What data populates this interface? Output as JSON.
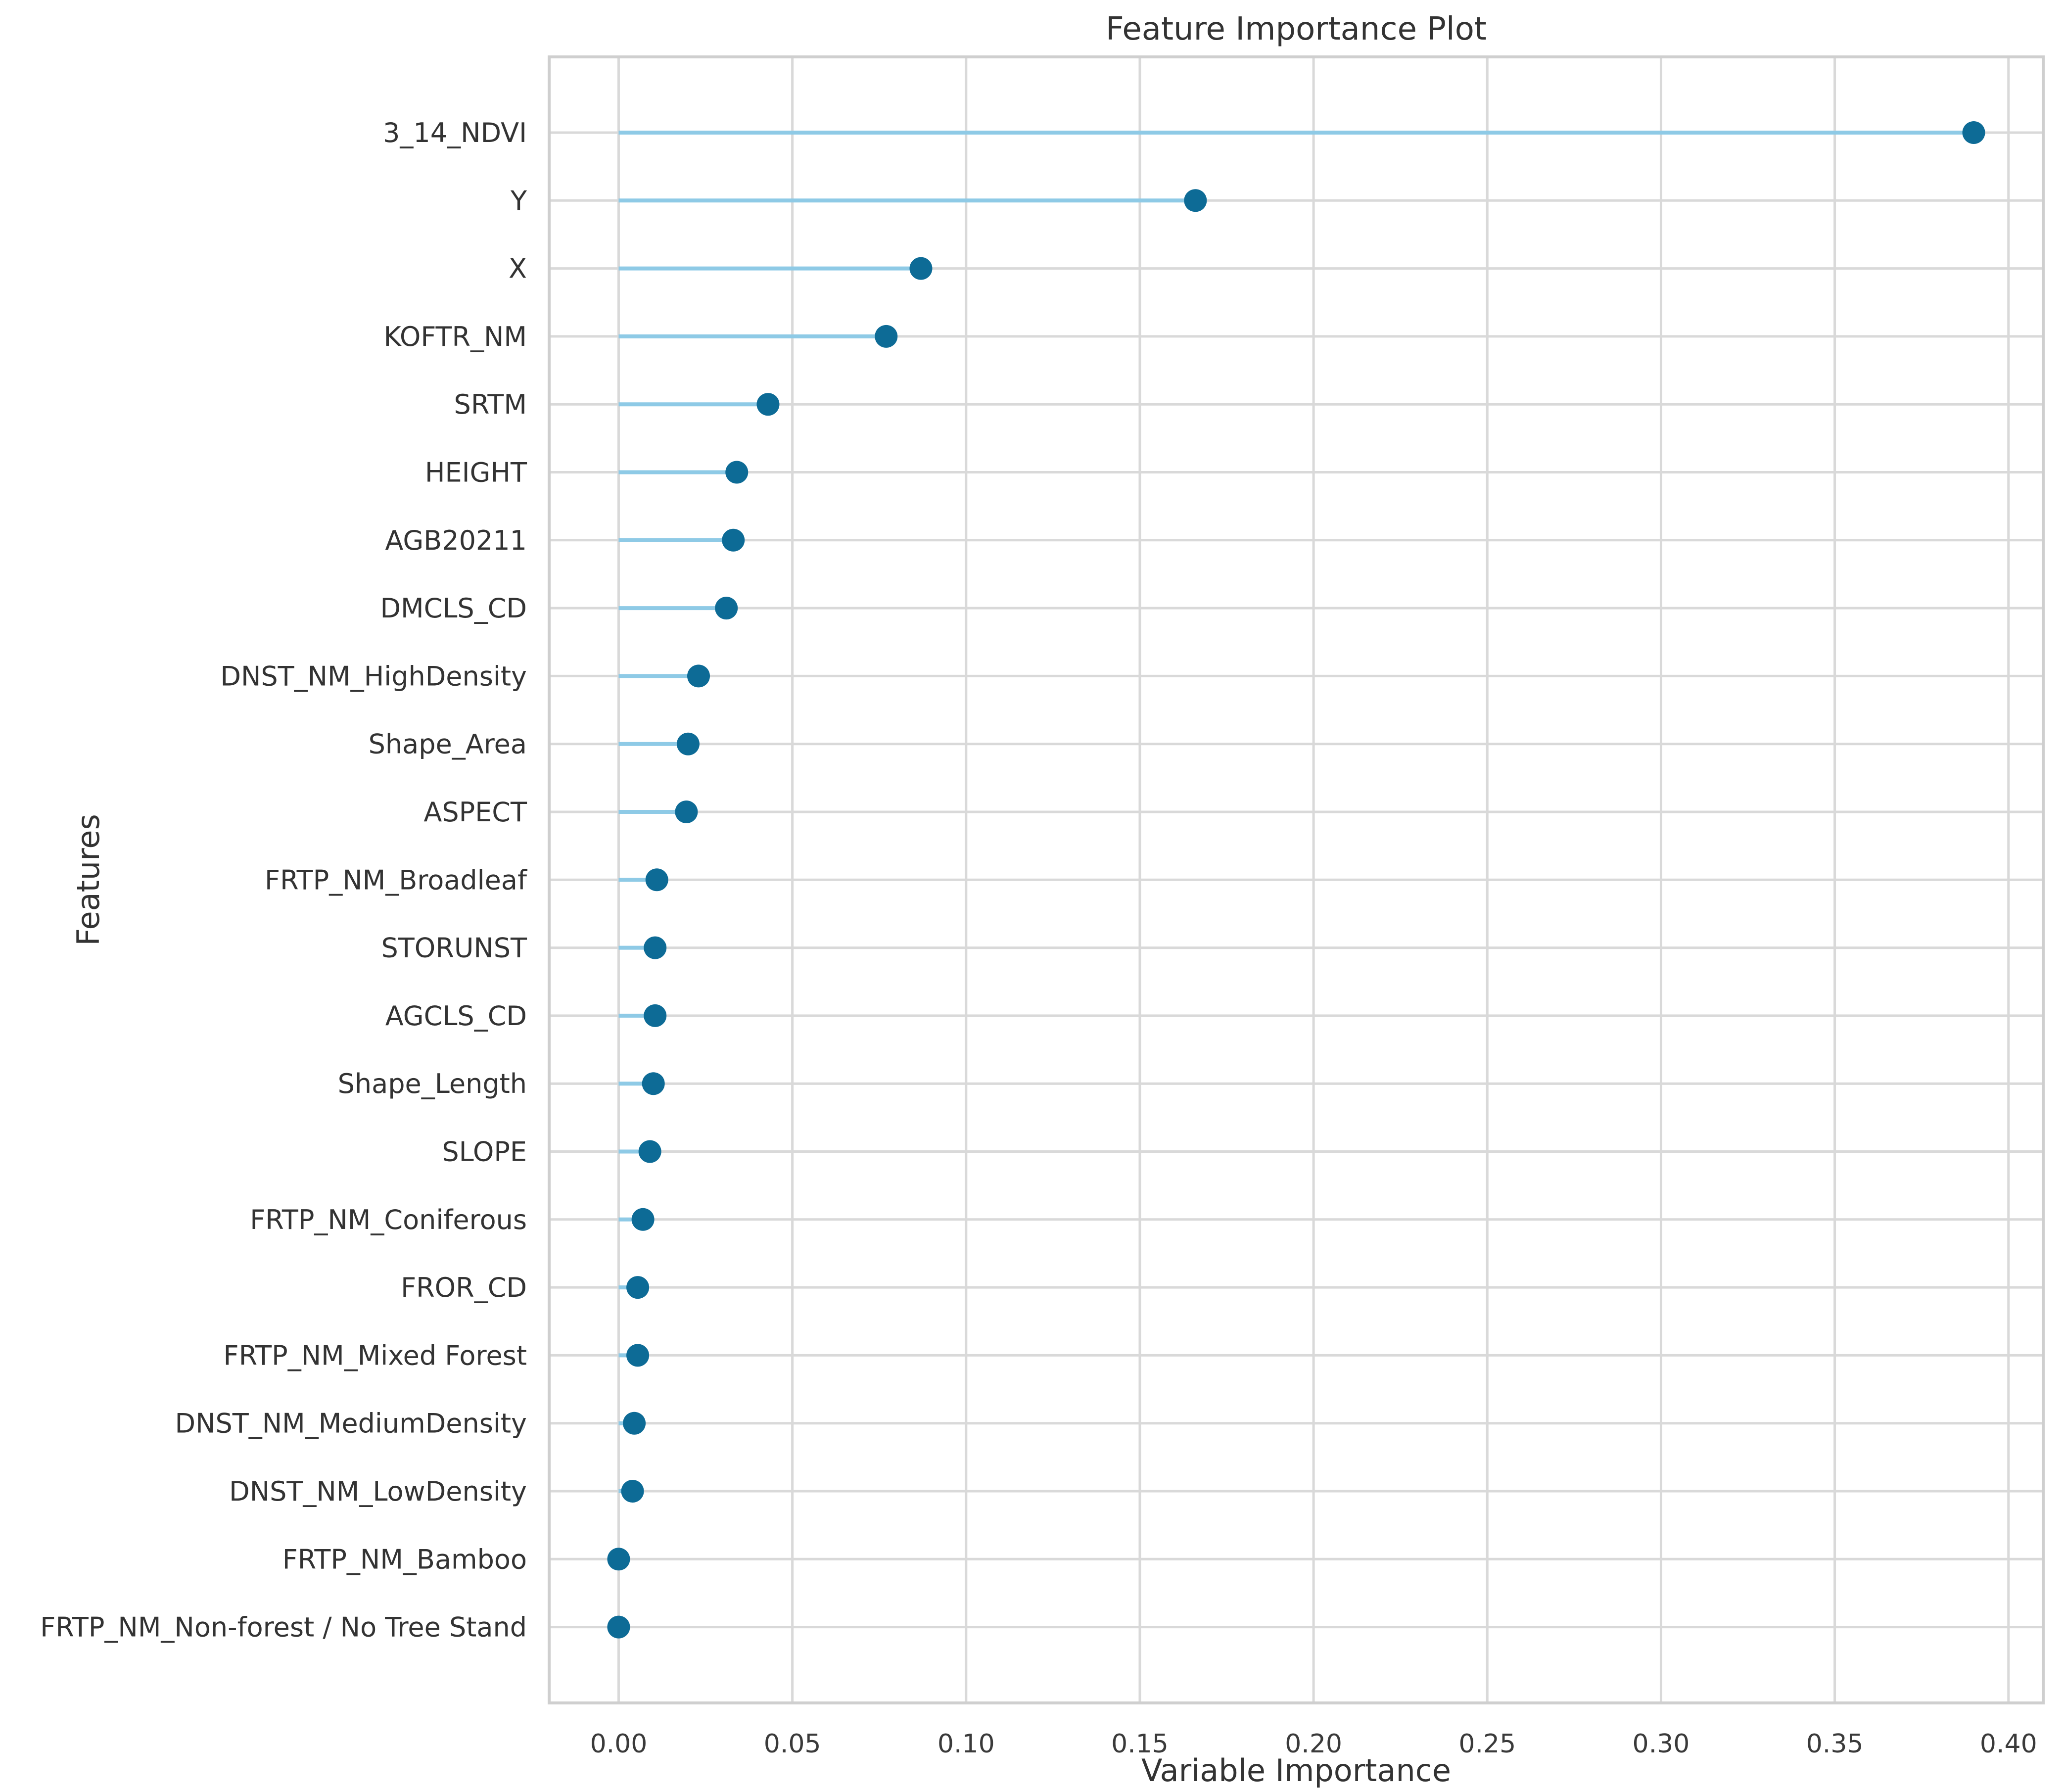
{
  "chart_data": {
    "type": "lollipop",
    "title": "Feature Importance Plot",
    "xlabel": "Variable Importance",
    "ylabel": "Features",
    "xlim": [
      -0.02,
      0.41
    ],
    "xticks": [
      0.0,
      0.05,
      0.1,
      0.15,
      0.2,
      0.25,
      0.3,
      0.35,
      0.4
    ],
    "xtick_labels": [
      "0.00",
      "0.05",
      "0.10",
      "0.15",
      "0.20",
      "0.25",
      "0.30",
      "0.35",
      "0.40"
    ],
    "grid": true,
    "categories": [
      "3_14_NDVI",
      "Y",
      "X",
      "KOFTR_NM",
      "SRTM",
      "HEIGHT",
      "AGB20211",
      "DMCLS_CD",
      "DNST_NM_HighDensity",
      "Shape_Area",
      "ASPECT",
      "FRTP_NM_Broadleaf",
      "STORUNST",
      "AGCLS_CD",
      "Shape_Length",
      "SLOPE",
      "FRTP_NM_Coniferous",
      "FROR_CD",
      "FRTP_NM_Mixed Forest",
      "DNST_NM_MediumDensity",
      "DNST_NM_LowDensity",
      "FRTP_NM_Bamboo",
      "FRTP_NM_Non-forest / No Tree Stand"
    ],
    "values": [
      0.39,
      0.166,
      0.087,
      0.077,
      0.043,
      0.034,
      0.033,
      0.031,
      0.023,
      0.02,
      0.0195,
      0.011,
      0.0105,
      0.0105,
      0.01,
      0.009,
      0.007,
      0.0055,
      0.0055,
      0.0045,
      0.004,
      0.0,
      0.0
    ],
    "colors": {
      "stem": "#8ecae6",
      "marker": "#0d6b96",
      "grid": "#d9d9d9",
      "frame": "#cfcfcf",
      "text": "#333333"
    }
  }
}
